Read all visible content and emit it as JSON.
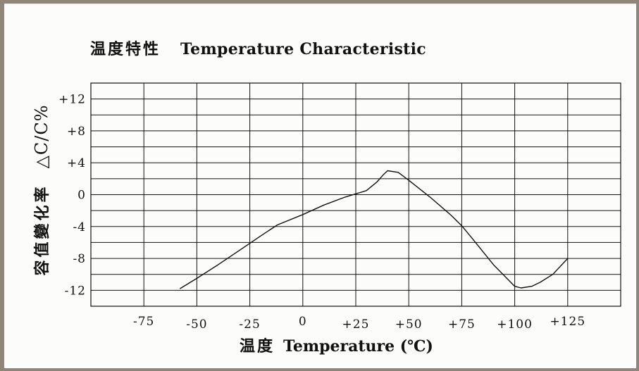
{
  "chart_data": {
    "type": "line",
    "title_cn": "温度特性",
    "title_en": "Temperature Characteristic",
    "xlabel_cn": "温度",
    "xlabel_en": "Temperature (℃)",
    "ylabel_cn": "容值變化率",
    "ylabel_unit": "△C/C%",
    "x_ticks": [
      {
        "label": "-75",
        "value": -75
      },
      {
        "label": "-50",
        "value": -50
      },
      {
        "label": "-25",
        "value": -25
      },
      {
        "label": "0",
        "value": 0
      },
      {
        "label": "+25",
        "value": 25
      },
      {
        "label": "+50",
        "value": 50
      },
      {
        "label": "+75",
        "value": 75
      },
      {
        "label": "+100",
        "value": 100
      },
      {
        "label": "+125",
        "value": 125
      }
    ],
    "y_ticks": [
      {
        "label": "+12",
        "value": 12
      },
      {
        "label": "+8",
        "value": 8
      },
      {
        "label": "+4",
        "value": 4
      },
      {
        "label": "0",
        "value": 0
      },
      {
        "label": "-4",
        "value": -4
      },
      {
        "label": "-8",
        "value": -8
      },
      {
        "label": "-12",
        "value": -12
      }
    ],
    "xlim": [
      -100,
      150
    ],
    "ylim": [
      -14,
      14
    ],
    "grid": true,
    "series": [
      {
        "x": [
          -58,
          -50,
          -40,
          -30,
          -20,
          -12,
          0,
          10,
          20,
          30,
          35,
          38,
          40,
          45,
          50,
          60,
          70,
          75,
          80,
          90,
          100,
          103,
          108,
          112,
          118,
          125
        ],
        "y": [
          -11.8,
          -10.5,
          -8.8,
          -7.0,
          -5.2,
          -3.8,
          -2.5,
          -1.3,
          -0.3,
          0.5,
          1.6,
          2.5,
          3.0,
          2.8,
          1.8,
          -0.3,
          -2.6,
          -3.9,
          -5.5,
          -8.8,
          -11.5,
          -11.7,
          -11.5,
          -11.0,
          -10.0,
          -8.0
        ]
      }
    ]
  }
}
